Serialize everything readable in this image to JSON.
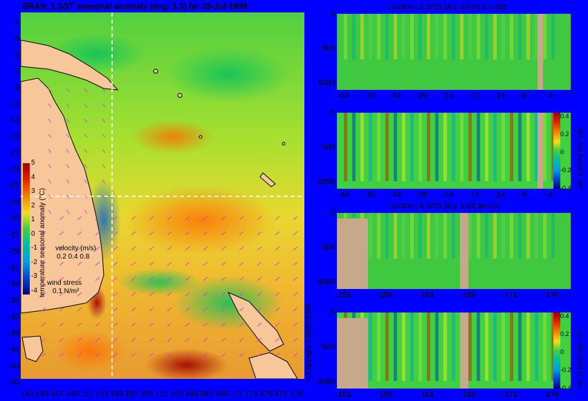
{
  "map": {
    "title": "BRAN_1  SST seasonal anomaly  (avg: 1.3) for 25-Jul-1999",
    "lat_ticks": [
      "-1",
      "-3",
      "-5",
      "-7",
      "-9",
      "-11",
      "-13",
      "-15",
      "-17",
      "-19",
      "-21",
      "-23",
      "-25",
      "-27",
      "-29",
      "-31",
      "-33",
      "-35",
      "-37",
      "-39",
      "-41",
      "-43",
      "-45"
    ],
    "lon_ticks": [
      "143",
      "145",
      "147",
      "149",
      "151",
      "153",
      "155",
      "157",
      "159",
      "161",
      "163",
      "165",
      "167",
      "169",
      "171",
      "173",
      "175",
      "177",
      "179"
    ],
    "colorbar": {
      "ticks": [
        "5",
        "4",
        "3",
        "2",
        "1",
        "0",
        "-1",
        "-2",
        "-3",
        "-4"
      ],
      "label": "temperature seasonal anomaly (°C)"
    },
    "velocity_legend": {
      "title": "velocity (m/s)",
      "scale": "0.2 0.4 0.8"
    },
    "wind_legend": {
      "title": "wind stress",
      "scale": "0.1 N/m²"
    },
    "copyright": "© Copyright CSIRO 2006",
    "colors": {
      "land": "#f7c79a",
      "background": "#0000ff"
    }
  },
  "sections": [
    {
      "title": "t section (-4..5°C)  (avg: 0.679) lon=155",
      "y_ticks": [
        "0",
        "500",
        "1000"
      ],
      "x_ticks": [
        "-44",
        "-39",
        "-34",
        "-29",
        "-24",
        "-19",
        "-14",
        "-9",
        "-4"
      ],
      "side_label": ""
    },
    {
      "title": "",
      "y_ticks": [
        "0",
        "500",
        "1000"
      ],
      "x_ticks": [
        "-44",
        "-39",
        "-34",
        "-29",
        "-24",
        "-19",
        "-14",
        "-9",
        "-4"
      ],
      "side_label": "vel. E (m/s) lon=155",
      "colorbar_ticks": [
        "0.4",
        "0.2",
        "0",
        "-0.2",
        "-0.4"
      ]
    },
    {
      "title": "t section (-4..5°C)  (avg: 1.53) lat=-22",
      "y_ticks": [
        "0",
        "500",
        "1000"
      ],
      "x_ticks": [
        "151",
        "156",
        "161",
        "166",
        "171",
        "176"
      ],
      "side_label": ""
    },
    {
      "title": "",
      "y_ticks": [
        "0",
        "500",
        "1000"
      ],
      "x_ticks": [
        "151",
        "156",
        "161",
        "166",
        "171",
        "176"
      ],
      "side_label": "vel. E (m/s) lat=-22",
      "colorbar_ticks": [
        "0.4",
        "0.2",
        "0",
        "-0.2",
        "-0.4"
      ]
    }
  ]
}
